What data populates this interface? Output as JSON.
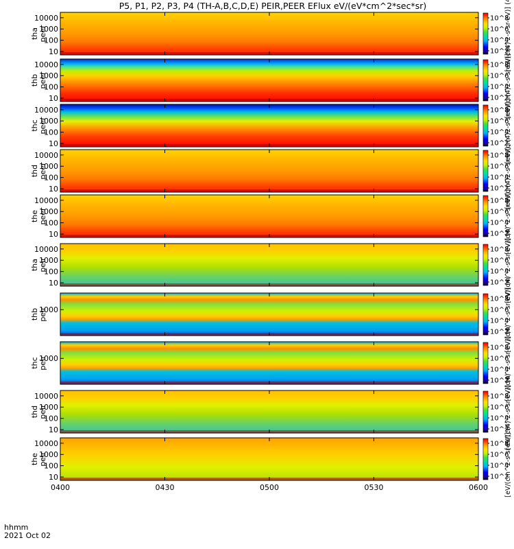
{
  "chart_data": {
    "type": "heatmap",
    "title": "P5, P1, P2, P3, P4 (TH-A,B,C,D,E) PEIR,PEER EFlux eV/(eV*cm^2*sec*sr)",
    "x_ticks": [
      "0400",
      "0430",
      "0500",
      "0530",
      "0600"
    ],
    "x_range_hhmm": [
      "0400",
      "0600"
    ],
    "x_label_lines": [
      "hhmm",
      "2021 Oct 02"
    ],
    "colorbar": {
      "scale": "log",
      "ticks": [
        "10^8",
        "10^6",
        "10^4",
        "10^2"
      ],
      "unit_label": "[eV/(cm^2-s-sr-eV)] (4)"
    },
    "panels": [
      {
        "name": "tha_peer",
        "label_lines": [
          "tha",
          "peer"
        ],
        "y_scale": "log",
        "y_ticks": [
          "10",
          "100",
          "1000",
          "10000"
        ],
        "y_range": [
          5,
          30000
        ]
      },
      {
        "name": "thb_peer",
        "label_lines": [
          "thb",
          "peer"
        ],
        "y_scale": "log",
        "y_ticks": [
          "10",
          "100",
          "1000",
          "10000"
        ],
        "y_range": [
          5,
          30000
        ]
      },
      {
        "name": "thc_peer",
        "label_lines": [
          "thc",
          "peer"
        ],
        "y_scale": "log",
        "y_ticks": [
          "10",
          "100",
          "1000",
          "10000"
        ],
        "y_range": [
          5,
          30000
        ]
      },
      {
        "name": "thd_peer",
        "label_lines": [
          "thd",
          "peer"
        ],
        "y_scale": "log",
        "y_ticks": [
          "10",
          "100",
          "1000",
          "10000"
        ],
        "y_range": [
          5,
          30000
        ]
      },
      {
        "name": "the_peer",
        "label_lines": [
          "the",
          "peer"
        ],
        "y_scale": "log",
        "y_ticks": [
          "10",
          "100",
          "1000",
          "10000"
        ],
        "y_range": [
          5,
          30000
        ]
      },
      {
        "name": "tha_peir",
        "label_lines": [
          "tha",
          "peir"
        ],
        "y_scale": "log",
        "y_ticks": [
          "10",
          "100",
          "1000",
          "10000"
        ],
        "y_range": [
          5,
          30000
        ]
      },
      {
        "name": "thb_peir",
        "label_lines": [
          "thb",
          "peir"
        ],
        "y_scale": "log",
        "y_ticks": [
          "1000"
        ],
        "y_range": [
          5,
          30000
        ]
      },
      {
        "name": "thc_peir",
        "label_lines": [
          "thc",
          "peir"
        ],
        "y_scale": "log",
        "y_ticks": [
          "1000"
        ],
        "y_range": [
          5,
          30000
        ]
      },
      {
        "name": "thd_peir",
        "label_lines": [
          "thd",
          "peir"
        ],
        "y_scale": "log",
        "y_ticks": [
          "10",
          "100",
          "1000",
          "10000"
        ],
        "y_range": [
          5,
          30000
        ]
      },
      {
        "name": "the_peir",
        "label_lines": [
          "the",
          "peir"
        ],
        "y_scale": "log",
        "y_ticks": [
          "10",
          "100",
          "1000",
          "10000"
        ],
        "y_range": [
          5,
          30000
        ]
      }
    ]
  }
}
